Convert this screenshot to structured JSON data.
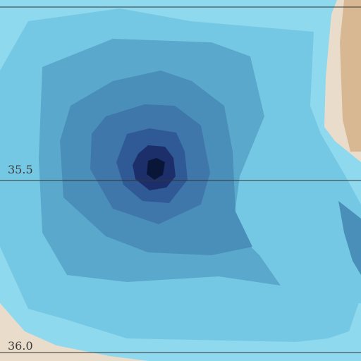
{
  "map": {
    "graticule_labels": [
      "35.5",
      "36.0"
    ]
  },
  "colors": {
    "land": "#e9dccb",
    "land_dark": "#d8b892",
    "depth_0": "#8fd9ef",
    "depth_1": "#75c8e3",
    "depth_2": "#5aa8cc",
    "depth_3": "#4a8fba",
    "depth_4": "#3f77aa",
    "depth_5": "#2f5a96",
    "depth_6": "#1c2f6b",
    "depth_7": "#0a1638",
    "graticule": "#333333"
  }
}
